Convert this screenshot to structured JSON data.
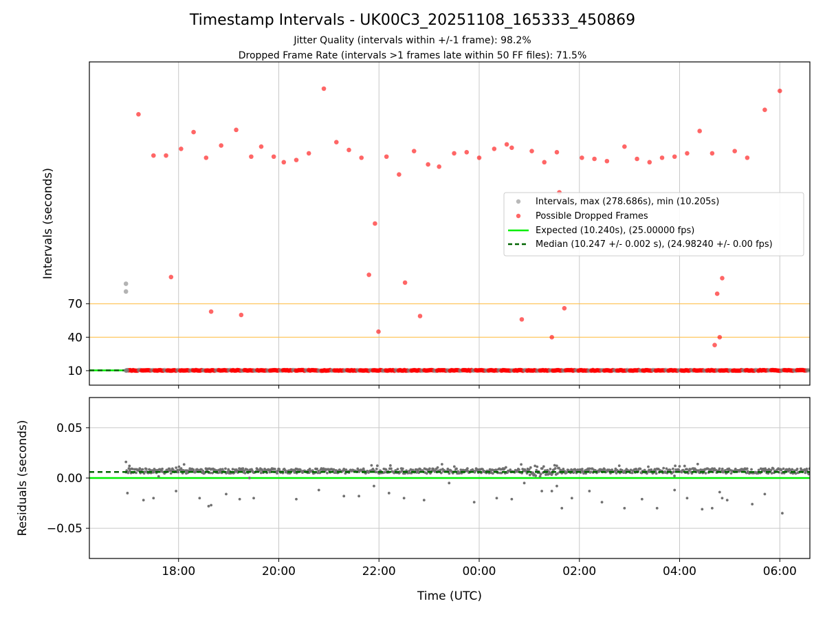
{
  "figure": {
    "title": "Timestamp Intervals - UK00C3_20251108_165333_450869",
    "subtitle_1": "Jitter Quality (intervals within +/-1 frame): 98.2%",
    "subtitle_2": "Dropped Frame Rate (intervals >1 frames late within 50 FF files): 71.5%",
    "xlabel": "Time (UTC)"
  },
  "colors": {
    "interval": "#808080",
    "dropped": "#ff0000",
    "expected": "#00ee00",
    "median": "#006400",
    "threshold": "#ffc04d",
    "grid": "#c8c8c8",
    "residual": "#707070"
  },
  "legend": {
    "intervals": "Intervals, max (278.686s), min (10.205s)",
    "dropped": "Possible Dropped Frames",
    "expected": "Expected (10.240s), (25.00000 fps)",
    "median": "Median (10.247 +/- 0.002 s), (24.98240 +/- 0.00 fps)"
  },
  "chart_data": [
    {
      "type": "scatter",
      "panel": "intervals",
      "ylabel": "Intervals (seconds)",
      "xlim": [
        16.22,
        30.6
      ],
      "ylim": [
        -3,
        287
      ],
      "x_ticks": [
        18,
        20,
        22,
        24,
        26,
        28,
        30
      ],
      "x_tick_labels": [
        "18:00",
        "20:00",
        "22:00",
        "00:00",
        "02:00",
        "04:00",
        "06:00"
      ],
      "y_ticks": [
        10,
        40,
        70
      ],
      "y_tick_labels": [
        "10",
        "40",
        "70"
      ],
      "threshold_lines": [
        40,
        70
      ],
      "expected": 10.24,
      "median": 10.247,
      "baseline_range": [
        16.95,
        30.6
      ],
      "legend_position": "center-right",
      "grid": true,
      "series": [
        {
          "name": "Intervals, max (278.686s), min (10.205s)",
          "x": [
            16.95,
            16.95,
            16.96,
            16.97
          ],
          "y": [
            88,
            81,
            10.2,
            10.24
          ]
        },
        {
          "name": "Possible Dropped Frames",
          "x": [
            17.2,
            17.5,
            17.75,
            17.85,
            18.05,
            18.3,
            18.55,
            18.65,
            18.85,
            19.15,
            19.25,
            19.45,
            19.65,
            19.9,
            20.1,
            20.35,
            20.6,
            20.9,
            21.15,
            21.4,
            21.65,
            21.8,
            21.92,
            21.99,
            22.15,
            22.4,
            22.52,
            22.7,
            22.82,
            22.98,
            23.2,
            23.5,
            23.75,
            24.0,
            24.3,
            24.55,
            24.85,
            24.65,
            25.05,
            25.3,
            25.55,
            25.6,
            25.7,
            25.45,
            26.3,
            26.05,
            26.55,
            26.9,
            27.15,
            27.4,
            27.65,
            27.9,
            28.15,
            28.4,
            28.65,
            28.7,
            28.75,
            28.8,
            28.85,
            29.1,
            29.35,
            29.7,
            30.0
          ],
          "y": [
            240,
            203,
            203,
            94,
            209,
            224,
            201,
            63,
            212,
            226,
            60,
            202,
            211,
            202,
            197,
            199,
            205,
            263,
            215,
            208,
            201,
            96,
            142,
            45,
            202,
            186,
            89,
            207,
            59,
            195,
            193,
            205,
            206,
            201,
            209,
            213,
            56,
            210,
            207,
            197,
            206,
            170,
            66,
            40,
            200,
            201,
            198,
            211,
            200,
            197,
            201,
            202,
            205,
            225,
            205,
            33,
            79,
            40,
            93,
            207,
            201,
            244,
            261
          ]
        }
      ]
    },
    {
      "type": "scatter",
      "panel": "residuals",
      "ylabel": "Residuals (seconds)",
      "xlabel": "Time (UTC)",
      "xlim": [
        16.22,
        30.6
      ],
      "ylim": [
        -0.08,
        0.08
      ],
      "x_ticks": [
        18,
        20,
        22,
        24,
        26,
        28,
        30
      ],
      "x_tick_labels": [
        "18:00",
        "20:00",
        "22:00",
        "00:00",
        "02:00",
        "04:00",
        "06:00"
      ],
      "y_ticks": [
        0.05,
        0.0,
        -0.05
      ],
      "y_tick_labels": [
        "0.05",
        "0.00",
        "−0.05"
      ],
      "expected_residual": 0.0,
      "median_residual": 0.006,
      "grid": true,
      "series": [
        {
          "name": "",
          "x": [
            16.95,
            16.98,
            17.02,
            17.3,
            17.5,
            17.95,
            18.42,
            18.6,
            18.65,
            18.95,
            19.22,
            19.5,
            20.35,
            20.8,
            21.3,
            21.6,
            21.9,
            22.2,
            22.5,
            22.9,
            23.4,
            23.9,
            24.35,
            24.65,
            24.9,
            25.25,
            25.45,
            25.55,
            25.65,
            25.85,
            26.2,
            26.45,
            26.9,
            27.25,
            27.55,
            27.9,
            28.15,
            28.45,
            28.65,
            28.8,
            28.85,
            28.95,
            29.45,
            29.7,
            30.05
          ],
          "y": [
            0.016,
            -0.015,
            0.012,
            -0.022,
            -0.02,
            -0.013,
            -0.02,
            -0.028,
            -0.027,
            -0.016,
            -0.021,
            -0.02,
            -0.021,
            -0.012,
            -0.018,
            -0.018,
            -0.008,
            -0.015,
            -0.02,
            -0.022,
            -0.005,
            -0.024,
            -0.02,
            -0.021,
            -0.005,
            -0.013,
            -0.013,
            -0.008,
            -0.03,
            -0.02,
            -0.013,
            -0.024,
            -0.03,
            -0.021,
            -0.03,
            -0.012,
            -0.02,
            -0.031,
            -0.03,
            -0.014,
            -0.02,
            -0.022,
            -0.026,
            -0.016,
            -0.035
          ]
        }
      ]
    }
  ]
}
